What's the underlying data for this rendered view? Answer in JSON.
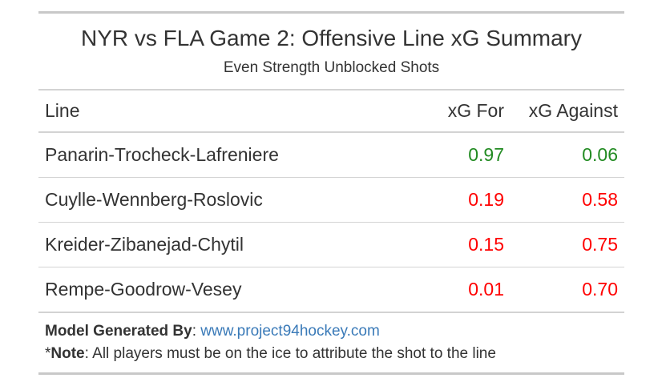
{
  "chart_data": {
    "type": "table",
    "title": "NYR vs FLA Game 2: Offensive Line xG Summary",
    "subtitle": "Even Strength Unblocked Shots",
    "columns": [
      "Line",
      "xG For",
      "xG Against"
    ],
    "rows": [
      {
        "line": "Panarin-Trocheck-Lafreniere",
        "xg_for": "0.97",
        "xg_against": "0.06",
        "for_status": "good",
        "against_status": "good"
      },
      {
        "line": "Cuylle-Wennberg-Roslovic",
        "xg_for": "0.19",
        "xg_against": "0.58",
        "for_status": "bad",
        "against_status": "bad"
      },
      {
        "line": "Kreider-Zibanejad-Chytil",
        "xg_for": "0.15",
        "xg_against": "0.75",
        "for_status": "bad",
        "against_status": "bad"
      },
      {
        "line": "Rempe-Goodrow-Vesey",
        "xg_for": "0.01",
        "xg_against": "0.70",
        "for_status": "bad",
        "against_status": "bad"
      }
    ],
    "colors": {
      "good": "#228b22",
      "bad": "#ff0000",
      "link": "#3a7ab8"
    }
  },
  "footer": {
    "model_label": "Model Generated By",
    "model_colon": ": ",
    "model_link": "www.project94hockey.com",
    "note_prefix": "*",
    "note_label": "Note",
    "note_text": ": All players must be on the ice to attribute the shot to the line"
  }
}
